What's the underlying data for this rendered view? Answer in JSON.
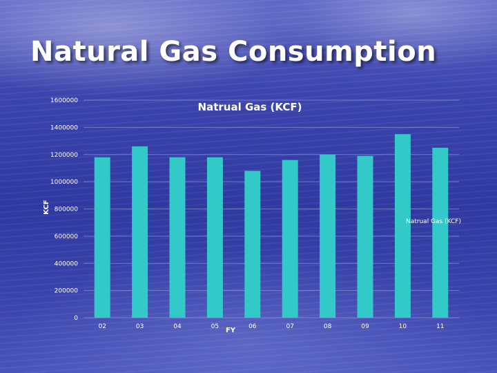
{
  "slide": {
    "title": "Natural Gas Consumption"
  },
  "colors": {
    "bar": "#33c9c9",
    "gridline": "#9aa3e0",
    "text": "#ffffff"
  },
  "chart_data": {
    "type": "bar",
    "title": "Natrual Gas (KCF)",
    "xlabel": "FY",
    "ylabel": "KCF",
    "categories": [
      "02",
      "03",
      "04",
      "05",
      "06",
      "07",
      "08",
      "09",
      "10",
      "11"
    ],
    "series": [
      {
        "name": "Natrual Gas (KCF)",
        "values": [
          1180000,
          1260000,
          1180000,
          1180000,
          1080000,
          1160000,
          1200000,
          1190000,
          1350000,
          1250000
        ]
      }
    ],
    "ylim": [
      0,
      1600000
    ],
    "yticks": [
      "0",
      "200000",
      "400000",
      "600000",
      "800000",
      "1000000",
      "1200000",
      "1400000",
      "1600000"
    ],
    "grid": true,
    "legend_position": "right"
  }
}
